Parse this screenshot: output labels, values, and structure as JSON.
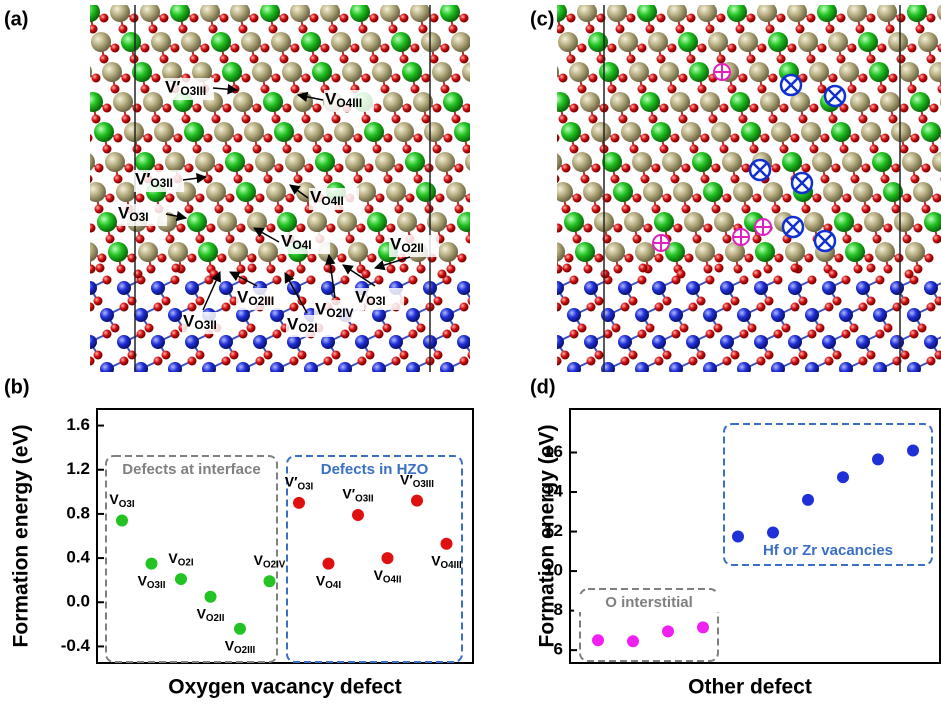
{
  "panel_labels": [
    "(a)",
    "(b)",
    "(c)",
    "(d)"
  ],
  "structure_labels": [
    "V′O3III",
    "VO4III",
    "V′O3II",
    "VO4II",
    "VO3I",
    "VO4I",
    "VO2II",
    "VO3II",
    "VO2III",
    "VO2I",
    "VO2IV",
    "VO3I"
  ],
  "chart_data": [
    {
      "type": "scatter",
      "ylabel": "Formation energy (eV)",
      "xlabel": "Oxygen vacancy defect",
      "categories": [
        "VO3I",
        "VO3II",
        "VO2I",
        "VO2II",
        "VO2III",
        "VO2IV",
        "V′O3I",
        "VO4I",
        "V′O3II",
        "VO4II",
        "V′O3III",
        "VO4III"
      ],
      "series": [
        {
          "name": "Defects at interface",
          "color": "#22c322",
          "box_color": "#808080",
          "values": [
            0.74,
            0.35,
            0.21,
            0.05,
            -0.24,
            0.19,
            null,
            null,
            null,
            null,
            null,
            null
          ]
        },
        {
          "name": "Defects in HZO",
          "color": "#e01010",
          "box_color": "#3a6fc4",
          "values": [
            null,
            null,
            null,
            null,
            null,
            null,
            0.9,
            0.35,
            0.79,
            0.4,
            0.92,
            0.53
          ]
        }
      ],
      "ylim": [
        -0.55,
        1.75
      ],
      "yticks": [
        -0.4,
        {
          "value": 0,
          "label": "0.0"
        },
        0.4,
        0.8,
        1.2,
        1.6
      ]
    },
    {
      "type": "scatter",
      "ylabel": "Formation energy (eV)",
      "xlabel": "Other defect",
      "categories": [
        null,
        null,
        null,
        null,
        null,
        null,
        null,
        null,
        null,
        null
      ],
      "series": [
        {
          "name": "O interstitial",
          "color": "#f020f0",
          "box_color": "#808080",
          "values": [
            6.5,
            6.45,
            6.95,
            7.15,
            null,
            null,
            null,
            null,
            null,
            null
          ]
        },
        {
          "name": "Hf or Zr vacancies",
          "color": "#2030d8",
          "box_color": "#3a6fc4",
          "values": [
            null,
            null,
            null,
            null,
            11.75,
            11.95,
            13.6,
            14.75,
            15.65,
            16.1
          ]
        }
      ],
      "ylim": [
        5.35,
        18.2
      ],
      "yticks": [
        6,
        8,
        10,
        12,
        14,
        16
      ]
    }
  ]
}
